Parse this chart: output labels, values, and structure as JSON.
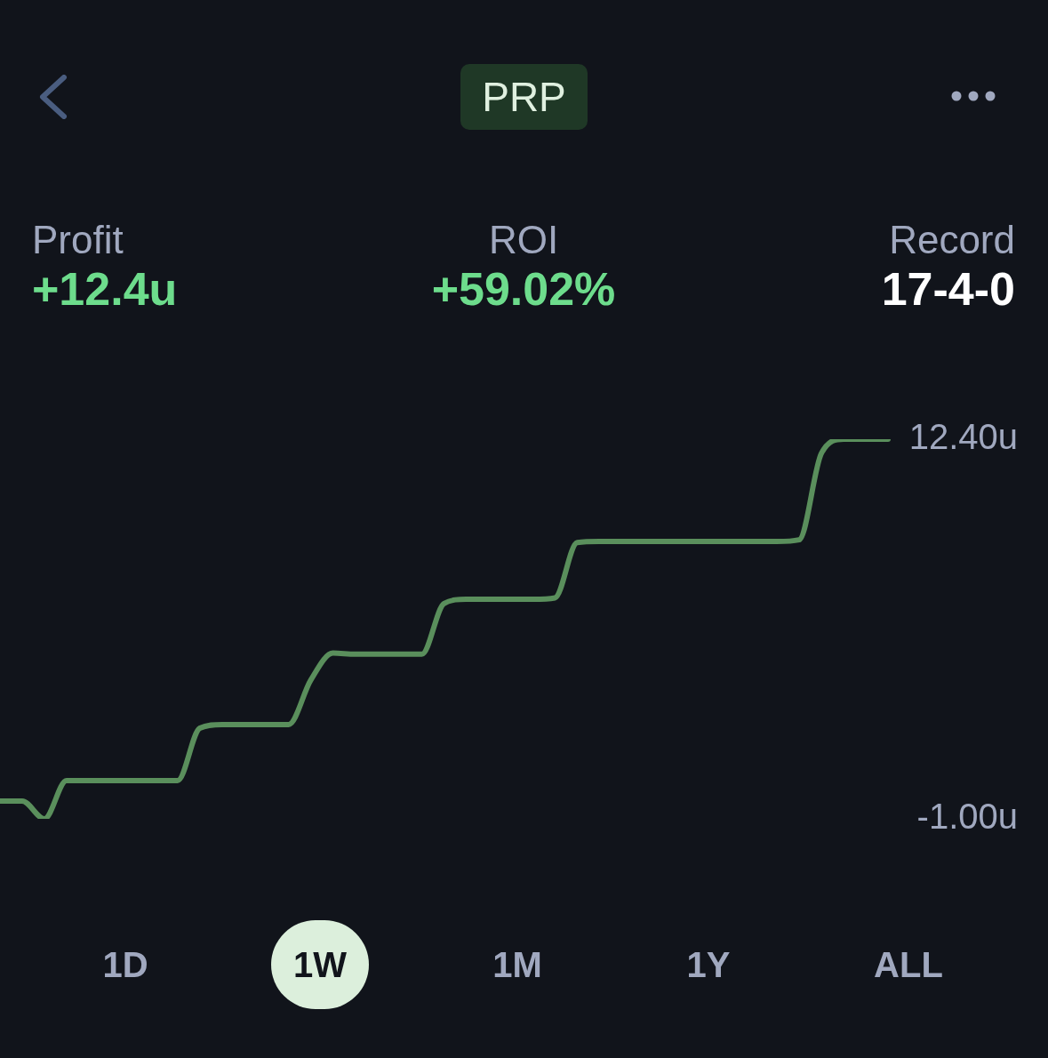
{
  "chart_data": {
    "type": "line",
    "title": "PRP",
    "categories": [
      null,
      null,
      null,
      null,
      null,
      null,
      null,
      null,
      null,
      null,
      null,
      null,
      null,
      null,
      null,
      null,
      null,
      null,
      null,
      null,
      null,
      null,
      null,
      null,
      null,
      null,
      null,
      null,
      null,
      null,
      null,
      null,
      null,
      null,
      null,
      null,
      null,
      null,
      null,
      null,
      null
    ],
    "series": [
      {
        "color": "#5a8f5c",
        "values": [
          -0.37,
          -0.37,
          -1.0,
          0.35,
          0.35,
          0.35,
          0.35,
          0.35,
          0.35,
          2.2,
          2.33,
          2.33,
          2.33,
          2.33,
          3.9,
          4.85,
          4.81,
          4.81,
          4.81,
          4.81,
          6.6,
          6.75,
          6.75,
          6.75,
          6.75,
          6.8,
          8.75,
          8.79,
          8.79,
          8.79,
          8.79,
          8.79,
          8.79,
          8.79,
          8.79,
          8.79,
          8.85,
          11.9,
          12.4,
          12.4,
          12.4
        ]
      }
    ],
    "ylim": [
      -1.0,
      12.4
    ],
    "yticks": [
      {
        "value": 12.4,
        "label": "12.40u"
      },
      {
        "value": -1.0,
        "label": "-1.00u"
      }
    ],
    "tick_labels": "y",
    "legend": false,
    "marker": "none",
    "line_style": "solid",
    "annotations": [
      "Profit",
      "+12.4u",
      "ROI",
      "+59.02%",
      "Record",
      "17-4-0",
      "1D",
      "1W",
      "1M",
      "1Y",
      "ALL"
    ]
  }
}
